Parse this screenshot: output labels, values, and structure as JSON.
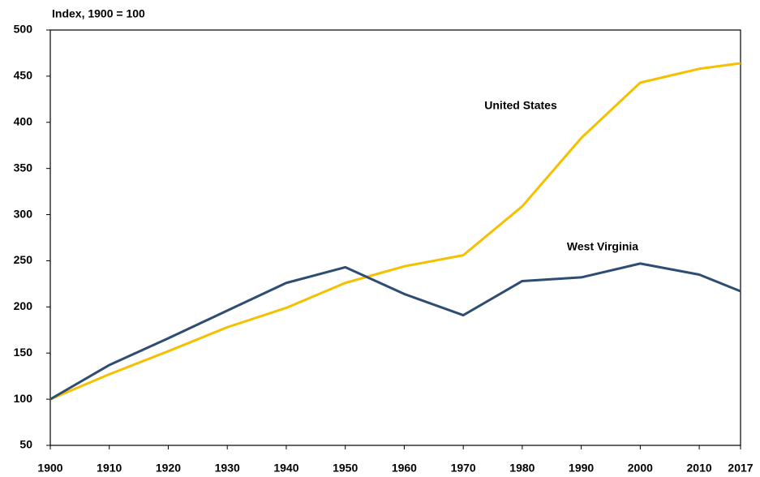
{
  "chart_data": {
    "type": "line",
    "y_axis_label": "Index, 1900 = 100",
    "x": [
      1900,
      1910,
      1920,
      1930,
      1940,
      1950,
      1960,
      1970,
      1980,
      1990,
      2000,
      2010,
      2017
    ],
    "xlim": [
      1900,
      2017
    ],
    "xticks": [
      1900,
      1910,
      1920,
      1930,
      1940,
      1950,
      1960,
      1970,
      1980,
      1990,
      2000,
      2010,
      2017
    ],
    "ylim": [
      50,
      500
    ],
    "yticks": [
      50,
      100,
      150,
      200,
      250,
      300,
      350,
      400,
      450,
      500
    ],
    "grid": false,
    "series": [
      {
        "name": "United States",
        "color": "#f5c000",
        "values": [
          100,
          127,
          152,
          178,
          199,
          226,
          244,
          256,
          309,
          383,
          443,
          458,
          464
        ]
      },
      {
        "name": "West Virginia",
        "color": "#2e4d73",
        "values": [
          100,
          137,
          166,
          196,
          226,
          243,
          214,
          191,
          228,
          232,
          247,
          235,
          217
        ]
      }
    ]
  }
}
